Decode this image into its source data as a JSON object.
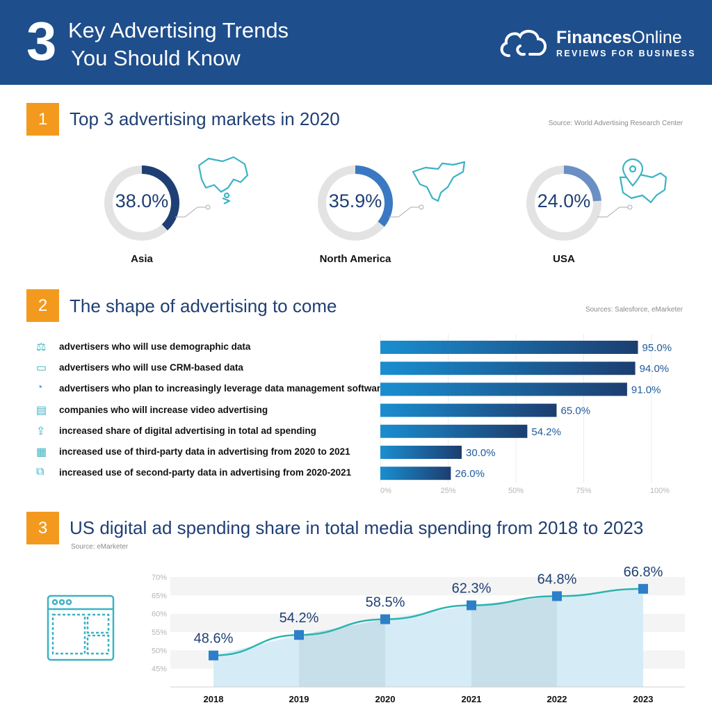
{
  "header": {
    "number": "3",
    "title_line1": "Key Advertising Trends",
    "title_line2": "You Should Know",
    "brand_bold": "Finances",
    "brand_rest": "Online",
    "tagline": "REVIEWS FOR BUSINESS"
  },
  "section1": {
    "number": "1",
    "title": "Top 3 advertising markets in 2020",
    "source": "Source: World Advertising Research Center"
  },
  "section2": {
    "number": "2",
    "title": "The shape of advertising to come",
    "source": "Sources: Salesforce, eMarketer"
  },
  "section3": {
    "number": "3",
    "title": "US digital ad spending share in total media spending from 2018 to 2023",
    "source": "Source: eMarketer"
  },
  "chart_data": [
    {
      "type": "pie",
      "title": "Top 3 advertising markets in 2020",
      "categories": [
        "Asia",
        "North America",
        "USA"
      ],
      "values": [
        38.0,
        35.9,
        24.0
      ],
      "value_labels": [
        "38.0%",
        "35.9%",
        "24.0%"
      ],
      "colors": [
        "#1f3f74",
        "#3a78c4",
        "#6a8fc4"
      ]
    },
    {
      "type": "bar",
      "orientation": "horizontal",
      "title": "The shape of advertising to come",
      "categories": [
        "advertisers who will use demographic data",
        "advertisers who will use CRM-based data",
        "advertisers who plan to increasingly leverage data management software",
        "companies who will increase video advertising",
        "increased share of digital advertising in total ad spending",
        "increased use of third-party data in advertising from 2020 to 2021",
        "increased use of second-party data in advertising from 2020-2021"
      ],
      "values": [
        95.0,
        94.0,
        91.0,
        65.0,
        54.2,
        30.0,
        26.0
      ],
      "value_labels": [
        "95.0%",
        "94.0%",
        "91.0%",
        "65.0%",
        "54.2%",
        "30.0%",
        "26.0%"
      ],
      "xlim": [
        0,
        100
      ],
      "xticks": [
        "0%",
        "25%",
        "50%",
        "75%",
        "100%"
      ]
    },
    {
      "type": "line",
      "title": "US digital ad spending share in total media spending from 2018 to 2023",
      "x": [
        "2018",
        "2019",
        "2020",
        "2021",
        "2022",
        "2023"
      ],
      "values": [
        48.6,
        54.2,
        58.5,
        62.3,
        64.8,
        66.8
      ],
      "value_labels": [
        "48.6%",
        "54.2%",
        "58.5%",
        "62.3%",
        "64.8%",
        "66.8%"
      ],
      "ylim": [
        40,
        70
      ],
      "yticks": [
        "45%",
        "50%",
        "55%",
        "60%",
        "65%",
        "70%"
      ]
    }
  ]
}
